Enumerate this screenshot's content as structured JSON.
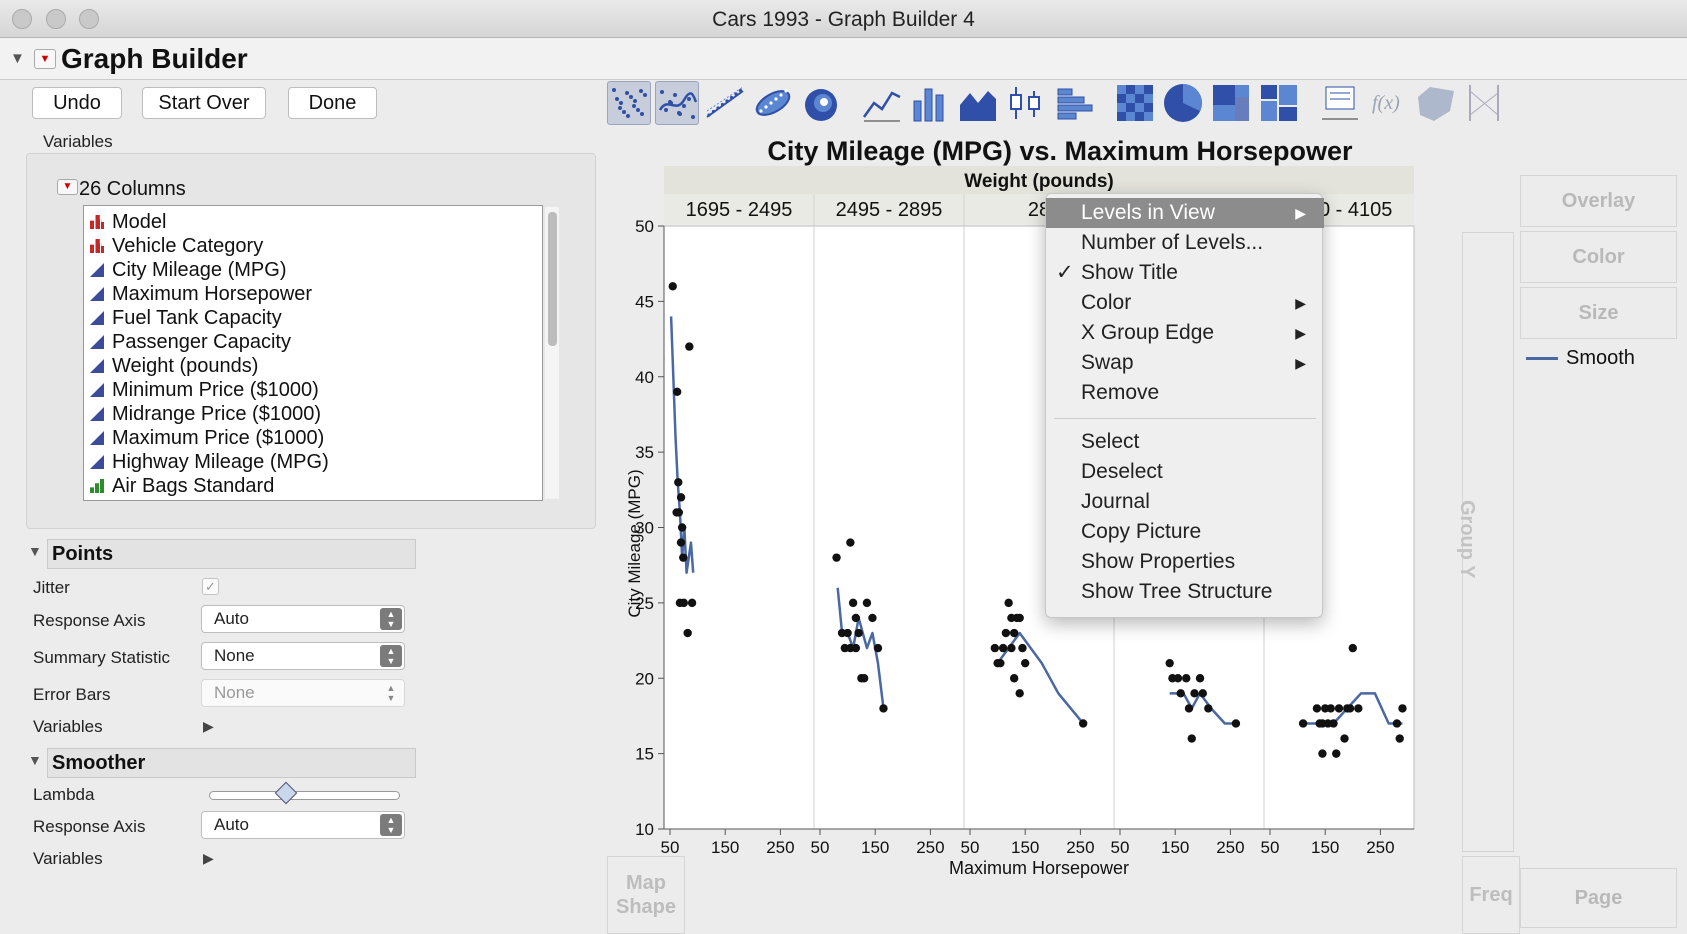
{
  "window": {
    "title": "Cars 1993 - Graph Builder 4"
  },
  "header": {
    "title": "Graph Builder"
  },
  "buttons": {
    "undo": "Undo",
    "start_over": "Start Over",
    "done": "Done"
  },
  "variables": {
    "label": "Variables",
    "columns_label": "26 Columns",
    "columns": [
      {
        "name": "Model",
        "type": "nominal"
      },
      {
        "name": "Vehicle Category",
        "type": "nominal"
      },
      {
        "name": "City Mileage (MPG)",
        "type": "continuous"
      },
      {
        "name": "Maximum Horsepower",
        "type": "continuous"
      },
      {
        "name": "Fuel Tank Capacity",
        "type": "continuous"
      },
      {
        "name": "Passenger Capacity",
        "type": "continuous"
      },
      {
        "name": "Weight (pounds)",
        "type": "continuous"
      },
      {
        "name": "Minimum Price ($1000)",
        "type": "continuous"
      },
      {
        "name": "Midrange Price ($1000)",
        "type": "continuous"
      },
      {
        "name": "Maximum Price ($1000)",
        "type": "continuous"
      },
      {
        "name": "Highway Mileage (MPG)",
        "type": "continuous"
      },
      {
        "name": "Air Bags Standard",
        "type": "ordinal"
      }
    ]
  },
  "points": {
    "title": "Points",
    "jitter_label": "Jitter",
    "response_axis_label": "Response Axis",
    "response_axis_value": "Auto",
    "summary_statistic_label": "Summary Statistic",
    "summary_statistic_value": "None",
    "error_bars_label": "Error Bars",
    "error_bars_value": "None",
    "variables_label": "Variables"
  },
  "smoother": {
    "title": "Smoother",
    "lambda_label": "Lambda",
    "lambda_value": 0.4,
    "response_axis_label": "Response Axis",
    "response_axis_value": "Auto",
    "variables_label": "Variables"
  },
  "toolbar": {
    "icons": [
      "points-icon",
      "smoother-icon",
      "line-of-fit-icon",
      "ellipse-icon",
      "contour-icon",
      "line-icon",
      "bar-icon",
      "area-icon",
      "box-plot-icon",
      "histogram-icon",
      "heatmap-icon",
      "pie-icon",
      "treemap-icon",
      "mosaic-icon",
      "caption-box-icon",
      "formula-icon",
      "map-shape-icon",
      "parallel-axes-icon"
    ],
    "selected": [
      0,
      1
    ]
  },
  "drop_zones": {
    "overlay": "Overlay",
    "color": "Color",
    "size": "Size",
    "group_y": "Group Y",
    "map_shape": "Map\nShape",
    "freq": "Freq",
    "page": "Page"
  },
  "legend": {
    "label": "Smooth",
    "color": "#4a68a4"
  },
  "context_menu": {
    "items": [
      {
        "label": "Levels in View",
        "submenu": true,
        "highlighted": true
      },
      {
        "label": "Number of Levels..."
      },
      {
        "label": "Show Title",
        "checked": true
      },
      {
        "label": "Color",
        "submenu": true
      },
      {
        "label": "X Group Edge",
        "submenu": true
      },
      {
        "label": "Swap",
        "submenu": true
      },
      {
        "label": "Remove"
      },
      {
        "label": "Select"
      },
      {
        "label": "Deselect"
      },
      {
        "label": "Journal"
      },
      {
        "label": "Copy Picture"
      },
      {
        "label": "Show Properties"
      },
      {
        "label": "Show Tree Structure"
      }
    ]
  },
  "chart_data": {
    "type": "scatter",
    "title": "City Mileage (MPG) vs. Maximum Horsepower",
    "group_title": "Weight (pounds)",
    "groups": [
      "1695 - 2495",
      "2495 - 2895",
      "28",
      "",
      "3640 - 4105"
    ],
    "xlabel": "Maximum Horsepower",
    "ylabel": "City Mileage (MPG)",
    "ylim": [
      10,
      50
    ],
    "yticks": [
      10,
      15,
      20,
      25,
      30,
      35,
      40,
      45,
      50
    ],
    "xlim": [
      50,
      300
    ],
    "xticks": [
      50,
      150,
      250
    ],
    "grid": false,
    "point_color": "#111111",
    "smooth_color": "#4a68a4",
    "panels": [
      {
        "points": [
          [
            55,
            46
          ],
          [
            63,
            39
          ],
          [
            65,
            33
          ],
          [
            70,
            32
          ],
          [
            62,
            31
          ],
          [
            66,
            31
          ],
          [
            72,
            30
          ],
          [
            70,
            29
          ],
          [
            74,
            28
          ],
          [
            85,
            42
          ],
          [
            68,
            25
          ],
          [
            75,
            25
          ],
          [
            90,
            25
          ],
          [
            82,
            23
          ]
        ],
        "smooth": [
          [
            52,
            44
          ],
          [
            56,
            40
          ],
          [
            60,
            36
          ],
          [
            64,
            33
          ],
          [
            68,
            31
          ],
          [
            72,
            28
          ],
          [
            76,
            30
          ],
          [
            80,
            27
          ],
          [
            84,
            28
          ],
          [
            88,
            29
          ],
          [
            92,
            27
          ]
        ]
      },
      {
        "points": [
          [
            80,
            28
          ],
          [
            105,
            29
          ],
          [
            90,
            23
          ],
          [
            95,
            22
          ],
          [
            100,
            23
          ],
          [
            105,
            22
          ],
          [
            110,
            25
          ],
          [
            115,
            24
          ],
          [
            120,
            23
          ],
          [
            115,
            22
          ],
          [
            125,
            20
          ],
          [
            130,
            20
          ],
          [
            135,
            25
          ],
          [
            145,
            24
          ],
          [
            155,
            22
          ],
          [
            165,
            18
          ]
        ],
        "smooth": [
          [
            82,
            26
          ],
          [
            90,
            23
          ],
          [
            100,
            23
          ],
          [
            110,
            22
          ],
          [
            120,
            24
          ],
          [
            135,
            22
          ],
          [
            145,
            23
          ],
          [
            155,
            21
          ],
          [
            165,
            18
          ]
        ]
      },
      {
        "points": [
          [
            95,
            22
          ],
          [
            100,
            21
          ],
          [
            105,
            21
          ],
          [
            110,
            22
          ],
          [
            115,
            23
          ],
          [
            120,
            25
          ],
          [
            125,
            24
          ],
          [
            130,
            23
          ],
          [
            135,
            24
          ],
          [
            140,
            24
          ],
          [
            145,
            22
          ],
          [
            125,
            22
          ],
          [
            130,
            20
          ],
          [
            140,
            19
          ],
          [
            150,
            21
          ],
          [
            255,
            17
          ]
        ],
        "smooth": [
          [
            100,
            21
          ],
          [
            120,
            22
          ],
          [
            140,
            23
          ],
          [
            160,
            22
          ],
          [
            180,
            21
          ],
          [
            210,
            19
          ],
          [
            255,
            17
          ]
        ]
      },
      {
        "points": [
          [
            140,
            21
          ],
          [
            145,
            20
          ],
          [
            155,
            20
          ],
          [
            160,
            19
          ],
          [
            170,
            20
          ],
          [
            175,
            18
          ],
          [
            185,
            19
          ],
          [
            195,
            20
          ],
          [
            200,
            19
          ],
          [
            210,
            18
          ],
          [
            180,
            16
          ],
          [
            260,
            17
          ]
        ],
        "smooth": [
          [
            140,
            19
          ],
          [
            150,
            19
          ],
          [
            165,
            19
          ],
          [
            180,
            18
          ],
          [
            195,
            19
          ],
          [
            215,
            18
          ],
          [
            240,
            17
          ],
          [
            260,
            17
          ]
        ]
      },
      {
        "points": [
          [
            110,
            17
          ],
          [
            135,
            18
          ],
          [
            140,
            17
          ],
          [
            145,
            17
          ],
          [
            150,
            18
          ],
          [
            155,
            17
          ],
          [
            160,
            18
          ],
          [
            165,
            17
          ],
          [
            145,
            15
          ],
          [
            170,
            15
          ],
          [
            185,
            16
          ],
          [
            175,
            18
          ],
          [
            190,
            18
          ],
          [
            195,
            18
          ],
          [
            210,
            18
          ],
          [
            200,
            22
          ],
          [
            280,
            17
          ],
          [
            285,
            16
          ],
          [
            290,
            18
          ]
        ],
        "smooth": [
          [
            110,
            17
          ],
          [
            140,
            17
          ],
          [
            165,
            17
          ],
          [
            190,
            18
          ],
          [
            215,
            19
          ],
          [
            240,
            19
          ],
          [
            265,
            17
          ],
          [
            290,
            17
          ]
        ]
      }
    ]
  }
}
